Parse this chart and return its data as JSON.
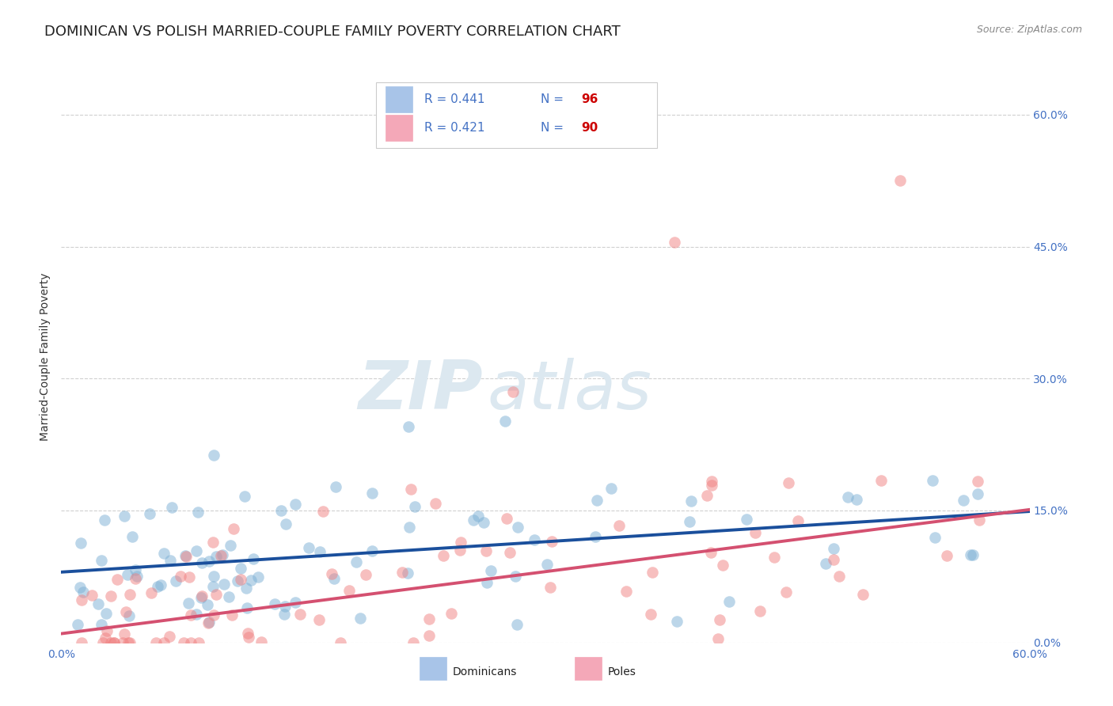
{
  "title": "DOMINICAN VS POLISH MARRIED-COUPLE FAMILY POVERTY CORRELATION CHART",
  "source": "Source: ZipAtlas.com",
  "ylabel": "Married-Couple Family Poverty",
  "watermark_zip": "ZIP",
  "watermark_atlas": "atlas",
  "dominicans_color": "#7bafd4",
  "poles_color": "#f08080",
  "dominicans_line_color": "#1a4f9c",
  "poles_line_color": "#d45070",
  "right_ytick_color": "#4472c4",
  "yticks_right": [
    0.0,
    0.15,
    0.3,
    0.45,
    0.6
  ],
  "ytick_labels_right": [
    "0.0%",
    "15.0%",
    "30.0%",
    "45.0%",
    "60.0%"
  ],
  "xlim": [
    0.0,
    0.6
  ],
  "ylim": [
    0.0,
    0.65
  ],
  "dom_intercept": 0.08,
  "dom_slope": 0.115,
  "pol_intercept": 0.01,
  "pol_slope": 0.235,
  "background_color": "#ffffff",
  "grid_color": "#d0d0d0",
  "title_fontsize": 13,
  "axis_label_fontsize": 10,
  "tick_fontsize": 10,
  "scatter_alpha": 0.5,
  "scatter_size": 110
}
